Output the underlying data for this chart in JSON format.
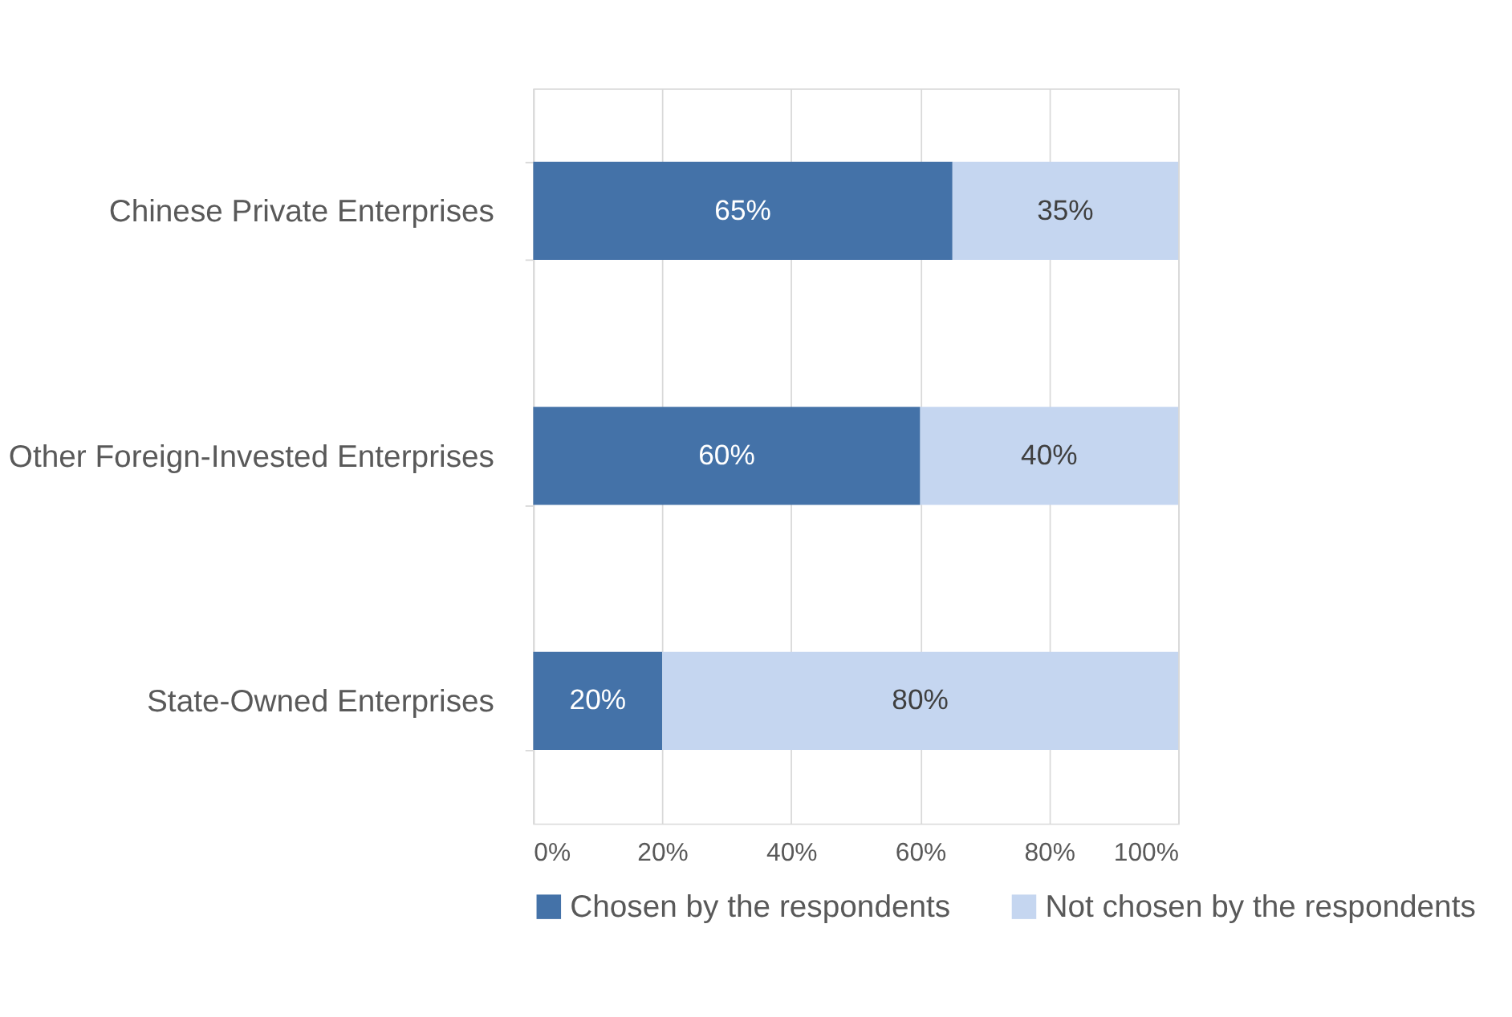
{
  "chart_data": {
    "type": "bar",
    "orientation": "horizontal",
    "stacked": true,
    "categories": [
      "Chinese Private Enterprises",
      "Other Foreign-Invested Enterprises",
      "State-Owned Enterprises"
    ],
    "series": [
      {
        "name": "Chosen by the respondents",
        "color": "#4472a8",
        "values": [
          65,
          60,
          20
        ],
        "value_labels": [
          "65%",
          "60%",
          "20%"
        ]
      },
      {
        "name": "Not chosen by the respondents",
        "color": "#c5d6f0",
        "values": [
          35,
          40,
          80
        ],
        "value_labels": [
          "35%",
          "40%",
          "80%"
        ]
      }
    ],
    "xlim": [
      0,
      100
    ],
    "xticks": [
      {
        "value": 0,
        "label": "0%"
      },
      {
        "value": 20,
        "label": "20%"
      },
      {
        "value": 40,
        "label": "40%"
      },
      {
        "value": 60,
        "label": "60%"
      },
      {
        "value": 80,
        "label": "80%"
      },
      {
        "value": 100,
        "label": "100%"
      }
    ],
    "grid": "x",
    "legend": "bottom"
  }
}
